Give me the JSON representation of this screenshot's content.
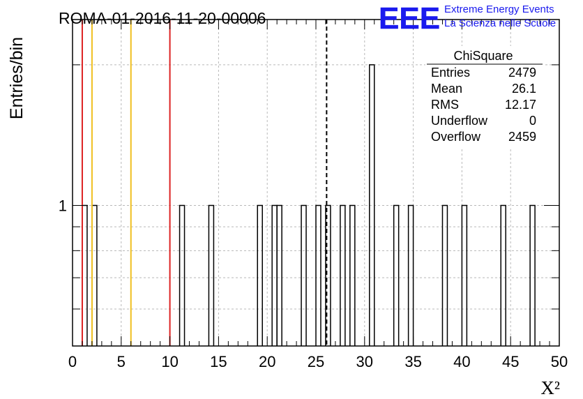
{
  "chart_data": {
    "type": "bar",
    "title": "ROMA-01-2016-11-20-00006",
    "xlabel": "X²",
    "ylabel": "Entries/bin",
    "xlim": [
      0,
      50
    ],
    "ylim": [
      0.5,
      2.5
    ],
    "y_scale": "log",
    "grid": true,
    "x_ticks": [
      "0",
      "5",
      "10",
      "15",
      "20",
      "25",
      "30",
      "35",
      "40",
      "45",
      "50"
    ],
    "y_ticks": [
      "1"
    ],
    "bin_width": 0.5,
    "bins": [
      {
        "x": 1.0,
        "value": 1
      },
      {
        "x": 2.0,
        "value": 1
      },
      {
        "x": 11.0,
        "value": 1
      },
      {
        "x": 14.0,
        "value": 1
      },
      {
        "x": 19.0,
        "value": 1
      },
      {
        "x": 20.5,
        "value": 1
      },
      {
        "x": 21.0,
        "value": 1
      },
      {
        "x": 23.5,
        "value": 1
      },
      {
        "x": 25.0,
        "value": 1
      },
      {
        "x": 26.0,
        "value": 1
      },
      {
        "x": 27.5,
        "value": 1
      },
      {
        "x": 28.5,
        "value": 1
      },
      {
        "x": 30.5,
        "value": 2
      },
      {
        "x": 33.0,
        "value": 1
      },
      {
        "x": 34.5,
        "value": 1
      },
      {
        "x": 38.0,
        "value": 1
      },
      {
        "x": 40.0,
        "value": 1
      },
      {
        "x": 44.0,
        "value": 1
      },
      {
        "x": 47.0,
        "value": 1
      }
    ],
    "reference_lines": [
      {
        "x": 1.0,
        "color": "#dd2222",
        "style": "solid"
      },
      {
        "x": 2.0,
        "color": "#f0c020",
        "style": "solid"
      },
      {
        "x": 6.0,
        "color": "#f0c020",
        "style": "solid"
      },
      {
        "x": 10.0,
        "color": "#dd2222",
        "style": "solid"
      },
      {
        "x": 26.1,
        "color": "#000000",
        "style": "dashed"
      }
    ],
    "stats_box": {
      "title": "ChiSquare",
      "rows": [
        {
          "label": "Entries",
          "value": "2479"
        },
        {
          "label": "Mean",
          "value": "26.1"
        },
        {
          "label": "RMS",
          "value": "12.17"
        },
        {
          "label": "Underflow",
          "value": "0"
        },
        {
          "label": "Overflow",
          "value": "2459"
        }
      ]
    }
  },
  "logo": {
    "text": "EEE",
    "line1": "Extreme Energy Events",
    "line2": "La Scienza nelle Scuole",
    "color": "#1a1aee"
  }
}
